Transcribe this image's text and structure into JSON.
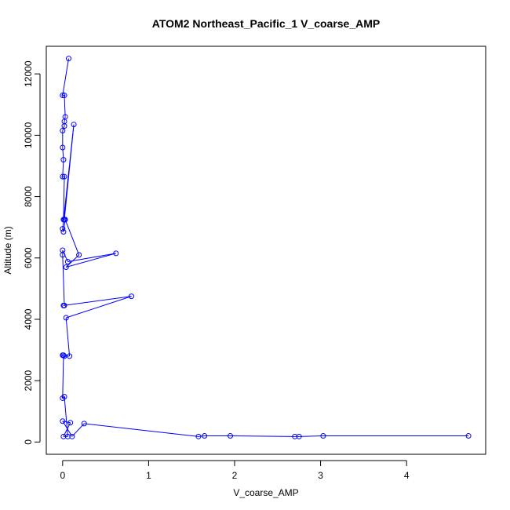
{
  "chart_data": {
    "type": "line",
    "title": "ATOM2 Northeast_Pacific_1 V_coarse_AMP",
    "xlabel": "V_coarse_AMP",
    "ylabel": "Altitude (m)",
    "xlim": [
      -0.19,
      4.92
    ],
    "ylim": [
      -400,
      12900
    ],
    "xticks": [
      0,
      1,
      2,
      3,
      4
    ],
    "yticks": [
      0,
      2000,
      4000,
      6000,
      8000,
      10000,
      12000
    ],
    "grid": false,
    "color": "#0000ff",
    "series": [
      {
        "x": [
          0.07,
          0.0,
          0.02,
          0.03,
          0.02,
          0.02,
          0.0,
          0.0,
          0.01,
          0.0,
          0.02,
          0.01,
          0.02,
          0.13,
          0.0,
          0.01,
          0.03,
          0.19,
          0.04,
          0.62,
          0.06,
          0.0,
          0.0,
          0.02,
          0.01,
          0.8,
          0.04,
          0.08,
          0.02,
          0.0,
          0.01,
          0.0,
          0.02,
          0.06,
          0.01,
          0.09,
          0.0,
          0.11,
          0.25,
          1.58,
          1.65,
          1.95,
          2.7,
          2.75,
          3.03,
          4.72
        ],
        "y": [
          12500,
          11300,
          11300,
          10600,
          10450,
          10300,
          10150,
          9600,
          9200,
          8650,
          8650,
          7250,
          7250,
          10350,
          6950,
          6850,
          7250,
          6100,
          5700,
          6150,
          5880,
          6250,
          6100,
          4450,
          4450,
          4750,
          4050,
          2800,
          2800,
          2830,
          2830,
          1430,
          1480,
          180,
          180,
          630,
          680,
          180,
          600,
          180,
          200,
          200,
          180,
          180,
          200,
          200
        ]
      }
    ]
  }
}
